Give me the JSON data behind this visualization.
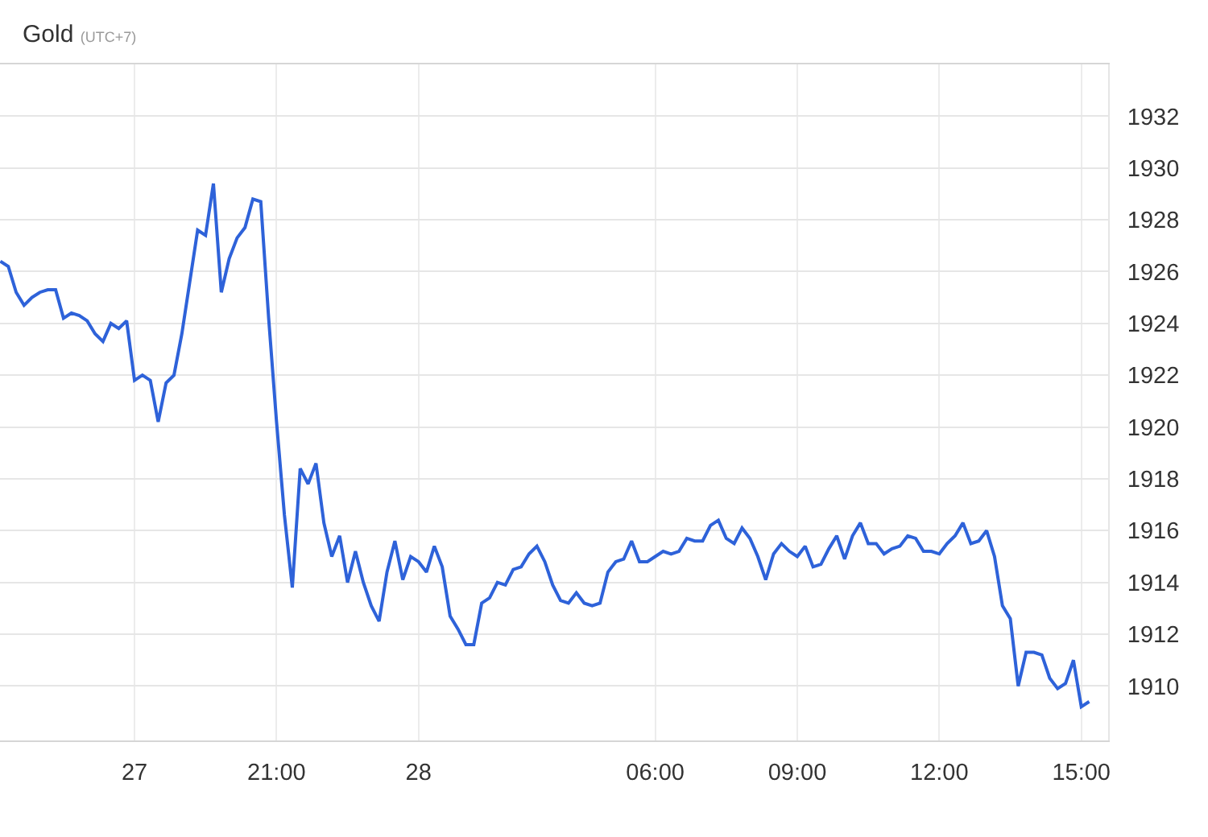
{
  "chart_data": {
    "type": "line",
    "title": "Gold",
    "subtitle": "(UTC+7)",
    "categories": [
      null,
      null,
      null,
      null,
      null,
      null,
      null,
      null,
      null,
      null,
      null,
      null,
      null,
      null,
      null,
      null,
      null,
      "27",
      null,
      null,
      null,
      null,
      null,
      null,
      null,
      null,
      null,
      null,
      null,
      null,
      null,
      null,
      null,
      null,
      null,
      "21:00",
      null,
      null,
      null,
      null,
      null,
      null,
      null,
      null,
      null,
      null,
      null,
      null,
      null,
      null,
      null,
      null,
      null,
      "28",
      null,
      null,
      null,
      null,
      null,
      null,
      null,
      null,
      null,
      null,
      null,
      null,
      null,
      null,
      null,
      null,
      null,
      null,
      null,
      null,
      null,
      null,
      null,
      null,
      null,
      null,
      null,
      null,
      null,
      "06:00",
      null,
      null,
      null,
      null,
      null,
      null,
      null,
      null,
      null,
      null,
      null,
      null,
      null,
      null,
      null,
      null,
      null,
      "09:00",
      null,
      null,
      null,
      null,
      null,
      null,
      null,
      null,
      null,
      null,
      null,
      null,
      null,
      null,
      null,
      null,
      null,
      "12:00",
      null,
      null,
      null,
      null,
      null,
      null,
      null,
      null,
      null,
      null,
      null,
      null,
      null,
      null,
      null,
      null,
      null,
      "15:00",
      null
    ],
    "values": [
      1926.4,
      1926.2,
      1925.2,
      1924.7,
      1925.0,
      1925.2,
      1925.3,
      1925.3,
      1924.2,
      1924.4,
      1924.3,
      1924.1,
      1923.6,
      1923.3,
      1924.0,
      1923.8,
      1924.1,
      1921.8,
      1922.0,
      1921.8,
      1920.2,
      1921.7,
      1922.0,
      1923.6,
      1925.6,
      1927.6,
      1927.4,
      1929.4,
      1925.2,
      1926.5,
      1927.3,
      1927.7,
      1928.8,
      1928.7,
      1924.2,
      1920.2,
      1916.6,
      1913.8,
      1918.4,
      1917.8,
      1918.6,
      1916.3,
      1915.0,
      1915.8,
      1914.0,
      1915.2,
      1914.0,
      1913.1,
      1912.5,
      1914.4,
      1915.6,
      1914.1,
      1915.0,
      1914.8,
      1914.4,
      1915.4,
      1914.6,
      1912.7,
      1912.2,
      1911.6,
      1911.6,
      1913.2,
      1913.4,
      1914.0,
      1913.9,
      1914.5,
      1914.6,
      1915.1,
      1915.4,
      1914.8,
      1913.9,
      1913.3,
      1913.2,
      1913.6,
      1913.2,
      1913.1,
      1913.2,
      1914.4,
      1914.8,
      1914.9,
      1915.6,
      1914.8,
      1914.8,
      1915.0,
      1915.2,
      1915.1,
      1915.2,
      1915.7,
      1915.6,
      1915.6,
      1916.2,
      1916.4,
      1915.7,
      1915.5,
      1916.1,
      1915.7,
      1915.0,
      1914.1,
      1915.1,
      1915.5,
      1915.2,
      1915.0,
      1915.4,
      1914.6,
      1914.7,
      1915.3,
      1915.8,
      1914.9,
      1915.8,
      1916.3,
      1915.5,
      1915.5,
      1915.1,
      1915.3,
      1915.4,
      1915.8,
      1915.7,
      1915.2,
      1915.2,
      1915.1,
      1915.5,
      1915.8,
      1916.3,
      1915.5,
      1915.6,
      1916.0,
      1915.0,
      1913.1,
      1912.6,
      1910.0,
      1911.3,
      1911.3,
      1911.2,
      1910.3,
      1909.9,
      1910.1,
      1911.0,
      1909.2,
      1909.4
    ],
    "color": "#2e62d9",
    "ylim": [
      1907.9,
      1934
    ],
    "yticks": [
      1910,
      1912,
      1914,
      1916,
      1918,
      1920,
      1922,
      1924,
      1926,
      1928,
      1930,
      1932
    ],
    "grid": true
  }
}
